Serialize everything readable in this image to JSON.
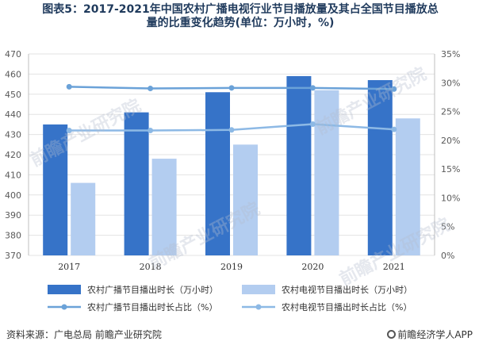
{
  "title_line1": "图表5：2017-2021年中国农村广播电视行业节目播放量及其占全国节目播放总",
  "title_line2": "量的比重变化趋势(单位：万小时，%)",
  "source": "资料来源：广电总局 前瞻产业研究院",
  "brand": "前瞻经济学人APP",
  "watermarks": [
    "前瞻产业研究院",
    "前瞻产业研究院",
    "前瞻产业研究院",
    "前瞻产业研究院"
  ],
  "colors": {
    "series1": "#3673c8",
    "series2": "#b3cdf0",
    "series3": "#6ba2d8",
    "series4": "#8db9e5",
    "grid": "#e3e3e3"
  },
  "chart_data": {
    "type": "bar",
    "categories": [
      "2017",
      "2018",
      "2019",
      "2020",
      "2021"
    ],
    "y_left": {
      "min": 370,
      "max": 470,
      "step": 10
    },
    "y_right": {
      "min": 0,
      "max": 35,
      "step": 5,
      "suffix": "%"
    },
    "grid": true,
    "legend_position": "bottom",
    "series": [
      {
        "name": "农村广播节目播出时长（万小时）",
        "kind": "bar",
        "axis": "left",
        "values": [
          435,
          441,
          451,
          459,
          457
        ]
      },
      {
        "name": "农村电视节目播出时长（万小时）",
        "kind": "bar",
        "axis": "left",
        "values": [
          406,
          418,
          425,
          452,
          438
        ]
      },
      {
        "name": "农村广播节目播出时长占比（%）",
        "kind": "line",
        "axis": "right",
        "values": [
          29.3,
          29.0,
          29.1,
          29.1,
          28.9
        ]
      },
      {
        "name": "农村电视节目播出时长占比（%）",
        "kind": "line",
        "axis": "right",
        "values": [
          21.7,
          21.7,
          21.8,
          22.8,
          21.9
        ]
      }
    ]
  }
}
